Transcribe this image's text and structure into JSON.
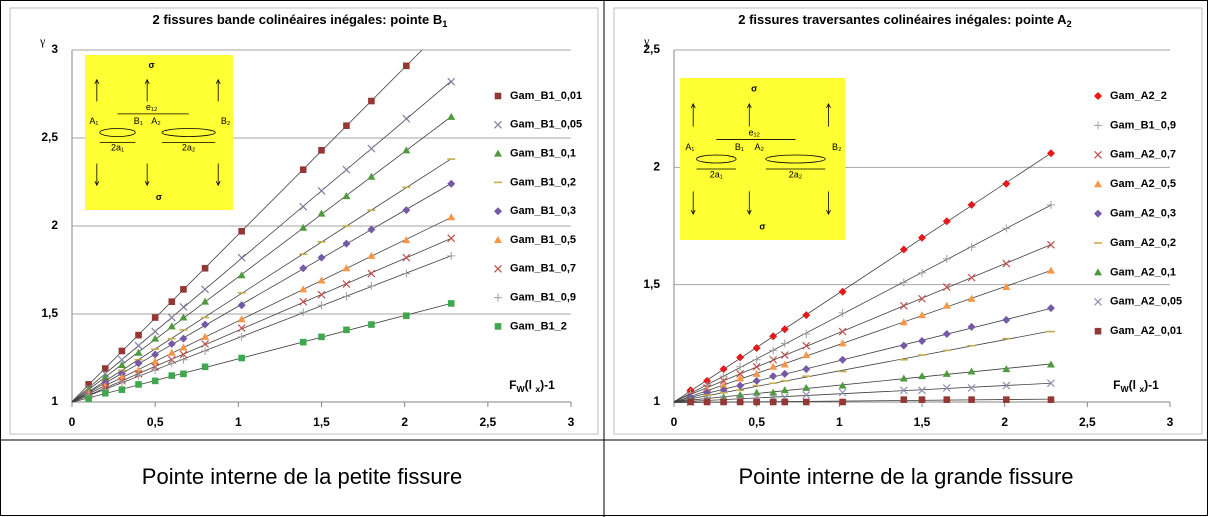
{
  "chart_data": [
    {
      "type": "scatter",
      "title": [
        "2 fissures bande colinéaires inégales: pointe B",
        "1"
      ],
      "y_label": "γ",
      "x_label": [
        "F",
        "W",
        "(l ",
        "x",
        ")-1"
      ],
      "xlim": [
        0,
        3
      ],
      "ylim": [
        1,
        3
      ],
      "xticks": [
        0,
        {
          "value": 0.5,
          "label": "0,5"
        },
        1,
        {
          "value": 1.5,
          "label": "1,5"
        },
        2,
        {
          "value": 2.5,
          "label": "2,5"
        },
        3
      ],
      "yticks": [
        1,
        {
          "value": 1.5,
          "label": "1,5"
        },
        2,
        {
          "value": 2.5,
          "label": "2,5"
        },
        3
      ],
      "grid": true,
      "inset_labels": [
        "σ",
        "σ",
        "A₁",
        "B₁",
        "A₂",
        "B₂",
        "e₁₂",
        "2a₁",
        "2a₂"
      ],
      "x": [
        0.1,
        0.2,
        0.3,
        0.4,
        0.5,
        0.6,
        0.67,
        0.8,
        1.02,
        1.39,
        1.5,
        1.65,
        1.8,
        2.01,
        2.28
      ],
      "series": [
        {
          "name": "Gam_B1_0,01",
          "color": "#953735",
          "marker": "square",
          "values": [
            1.1,
            1.19,
            1.29,
            1.38,
            1.48,
            1.57,
            1.64,
            1.76,
            1.97,
            2.32,
            2.43,
            2.57,
            2.71,
            2.91,
            null
          ]
        },
        {
          "name": "Gam_B1_0,05",
          "color": "#7f7f9f",
          "marker": "x",
          "values": [
            1.08,
            1.16,
            1.24,
            1.32,
            1.4,
            1.48,
            1.54,
            1.64,
            1.82,
            2.11,
            2.2,
            2.32,
            2.44,
            2.61,
            2.82
          ]
        },
        {
          "name": "Gam_B1_0,1",
          "color": "#4f9a3f",
          "marker": "triangle",
          "values": [
            1.07,
            1.14,
            1.21,
            1.28,
            1.36,
            1.43,
            1.48,
            1.57,
            1.72,
            1.99,
            2.07,
            2.17,
            2.28,
            2.43,
            2.62
          ]
        },
        {
          "name": "Gam_B1_0,2",
          "color": "#c8ac4a",
          "marker": "dash",
          "values": [
            1.06,
            1.12,
            1.18,
            1.24,
            1.3,
            1.36,
            1.41,
            1.48,
            1.62,
            1.84,
            1.91,
            2.0,
            2.09,
            2.22,
            2.38
          ]
        },
        {
          "name": "Gam_B1_0,3",
          "color": "#7459a8",
          "marker": "diamond",
          "values": [
            1.05,
            1.11,
            1.16,
            1.22,
            1.27,
            1.33,
            1.36,
            1.44,
            1.55,
            1.76,
            1.82,
            1.9,
            1.98,
            2.09,
            2.24
          ]
        },
        {
          "name": "Gam_B1_0,5",
          "color": "#f79646",
          "marker": "triangle",
          "values": [
            1.05,
            1.09,
            1.14,
            1.18,
            1.23,
            1.28,
            1.31,
            1.37,
            1.47,
            1.64,
            1.69,
            1.76,
            1.83,
            1.92,
            2.05
          ]
        },
        {
          "name": "Gam_B1_0,7",
          "color": "#c0504d",
          "marker": "x",
          "values": [
            1.04,
            1.08,
            1.12,
            1.16,
            1.2,
            1.24,
            1.27,
            1.33,
            1.42,
            1.57,
            1.61,
            1.67,
            1.73,
            1.82,
            1.93
          ]
        },
        {
          "name": "Gam_B1_0,9",
          "color": "#9f9f9f",
          "marker": "plus",
          "values": [
            1.04,
            1.07,
            1.11,
            1.15,
            1.18,
            1.22,
            1.24,
            1.29,
            1.37,
            1.51,
            1.55,
            1.6,
            1.66,
            1.73,
            1.83
          ]
        },
        {
          "name": "Gam_B1_2",
          "color": "#3fa84f",
          "marker": "square",
          "values": [
            1.02,
            1.05,
            1.07,
            1.1,
            1.12,
            1.15,
            1.16,
            1.2,
            1.25,
            1.34,
            1.37,
            1.41,
            1.44,
            1.49,
            1.56
          ]
        }
      ]
    },
    {
      "type": "scatter",
      "title": [
        "2 fissures traversantes colinéaires inégales: pointe A",
        "2"
      ],
      "y_label": "γ",
      "x_label": [
        "F",
        "W",
        "(l ",
        "x",
        ")-1"
      ],
      "xlim": [
        0,
        3
      ],
      "ylim": [
        1,
        2.5
      ],
      "xticks": [
        0,
        {
          "value": 0.5,
          "label": "0,5"
        },
        1,
        {
          "value": 1.5,
          "label": "1,5"
        },
        2,
        {
          "value": 2.5,
          "label": "2,5"
        },
        3
      ],
      "yticks": [
        1,
        {
          "value": 1.5,
          "label": "1,5"
        },
        2,
        {
          "value": 2.5,
          "label": "2,5"
        }
      ],
      "grid": true,
      "inset_labels": [
        "σ",
        "σ",
        "A₁",
        "B₁",
        "A₂",
        "B₂",
        "e₁₂",
        "2a₁",
        "2a₂"
      ],
      "x": [
        0.1,
        0.2,
        0.3,
        0.4,
        0.5,
        0.6,
        0.67,
        0.8,
        1.02,
        1.39,
        1.5,
        1.65,
        1.8,
        2.01,
        2.28
      ],
      "series": [
        {
          "name": "Gam_A2_2",
          "color": "#e3191b",
          "marker": "diamond",
          "values": [
            1.05,
            1.09,
            1.14,
            1.19,
            1.23,
            1.28,
            1.31,
            1.37,
            1.47,
            1.65,
            1.7,
            1.77,
            1.84,
            1.93,
            2.06
          ]
        },
        {
          "name": "Gam_B1_0,9",
          "color": "#9f9f9f",
          "marker": "plus",
          "values": [
            1.04,
            1.07,
            1.11,
            1.15,
            1.18,
            1.22,
            1.25,
            1.29,
            1.38,
            1.51,
            1.55,
            1.61,
            1.66,
            1.74,
            1.84
          ]
        },
        {
          "name": "Gam_A2_0,7",
          "color": "#c0504d",
          "marker": "x",
          "values": [
            1.03,
            1.06,
            1.09,
            1.12,
            1.15,
            1.18,
            1.2,
            1.24,
            1.3,
            1.41,
            1.44,
            1.49,
            1.53,
            1.59,
            1.67
          ]
        },
        {
          "name": "Gam_A2_0,5",
          "color": "#f79646",
          "marker": "triangle",
          "values": [
            1.02,
            1.05,
            1.07,
            1.1,
            1.12,
            1.15,
            1.16,
            1.2,
            1.25,
            1.34,
            1.37,
            1.41,
            1.44,
            1.49,
            1.56
          ]
        },
        {
          "name": "Gam_A2_0,3",
          "color": "#7459a8",
          "marker": "diamond",
          "values": [
            1.02,
            1.04,
            1.05,
            1.07,
            1.09,
            1.11,
            1.12,
            1.14,
            1.18,
            1.24,
            1.26,
            1.29,
            1.32,
            1.35,
            1.4
          ]
        },
        {
          "name": "Gam_A2_0,2",
          "color": "#c8ac4a",
          "marker": "dash",
          "values": [
            1.01,
            1.03,
            1.04,
            1.05,
            1.07,
            1.08,
            1.09,
            1.11,
            1.13,
            1.18,
            1.2,
            1.22,
            1.24,
            1.27,
            1.3
          ]
        },
        {
          "name": "Gam_A2_0,1",
          "color": "#4f9a3f",
          "marker": "triangle",
          "values": [
            1.01,
            1.01,
            1.02,
            1.03,
            1.04,
            1.04,
            1.05,
            1.06,
            1.07,
            1.1,
            1.11,
            1.12,
            1.13,
            1.14,
            1.16
          ]
        },
        {
          "name": "Gam_A2_0,05",
          "color": "#8f8faf",
          "marker": "x",
          "values": [
            1.0,
            1.01,
            1.01,
            1.01,
            1.02,
            1.02,
            1.02,
            1.03,
            1.04,
            1.05,
            1.05,
            1.06,
            1.06,
            1.07,
            1.08
          ]
        },
        {
          "name": "Gam_A2_0,01",
          "color": "#953735",
          "marker": "square",
          "values": [
            1.0,
            1.0,
            1.0,
            1.0,
            1.0,
            1.0,
            1.0,
            1.0,
            1.0,
            1.01,
            1.01,
            1.01,
            1.01,
            1.01,
            1.01
          ]
        }
      ]
    }
  ],
  "captions": [
    "Pointe interne de la petite fissure",
    "Pointe interne de la grande fissure"
  ]
}
